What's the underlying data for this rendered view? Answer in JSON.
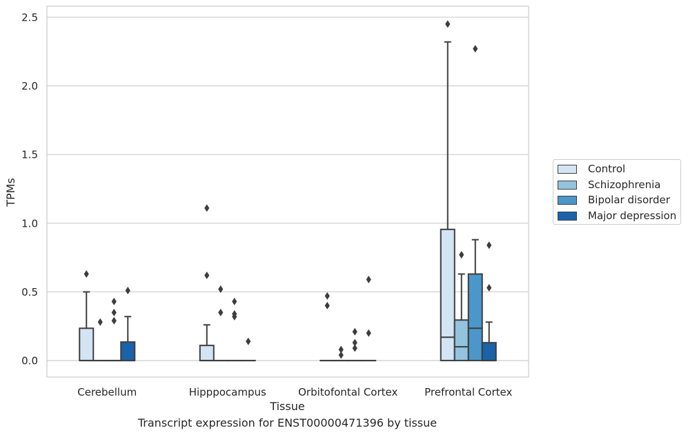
{
  "caption": "Transcript expression for ENST00000471396 by tissue",
  "colors": {
    "Control": "#d3e4f3",
    "Schizophrenia": "#93c3df",
    "Bipolar disorder": "#4b97c9",
    "Major depression": "#1a63aa"
  },
  "chart_data": {
    "type": "box",
    "xlabel": "Tissue",
    "ylabel": "TPMs",
    "ylim": [
      -0.12,
      2.58
    ],
    "yticks": [
      0.0,
      0.5,
      1.0,
      1.5,
      2.0,
      2.5
    ],
    "ytick_labels": [
      "0.0",
      "0.5",
      "1.0",
      "1.5",
      "2.0",
      "2.5"
    ],
    "grid": true,
    "legend_position": "right",
    "categories": [
      "Cerebellum",
      "Hipppocampus",
      "Orbitofontal Cortex",
      "Prefrontal Cortex"
    ],
    "series": [
      {
        "name": "Control",
        "boxes": [
          {
            "q1": 0.0,
            "median": 0.0,
            "q3": 0.235,
            "whislo": 0.0,
            "whishi": 0.5,
            "fliers": [
              0.63
            ]
          },
          {
            "q1": 0.0,
            "median": 0.0,
            "q3": 0.11,
            "whislo": 0.0,
            "whishi": 0.26,
            "fliers": [
              0.62,
              1.11
            ]
          },
          {
            "q1": 0.0,
            "median": 0.0,
            "q3": 0.0,
            "whislo": 0.0,
            "whishi": 0.0,
            "fliers": [
              0.4,
              0.47
            ]
          },
          {
            "q1": 0.0,
            "median": 0.17,
            "q3": 0.955,
            "whislo": 0.0,
            "whishi": 2.32,
            "fliers": [
              2.45
            ]
          }
        ]
      },
      {
        "name": "Schizophrenia",
        "boxes": [
          {
            "q1": 0.0,
            "median": 0.0,
            "q3": 0.0,
            "whislo": 0.0,
            "whishi": 0.0,
            "fliers": [
              0.28
            ]
          },
          {
            "q1": 0.0,
            "median": 0.0,
            "q3": 0.0,
            "whislo": 0.0,
            "whishi": 0.0,
            "fliers": [
              0.35,
              0.52
            ]
          },
          {
            "q1": 0.0,
            "median": 0.0,
            "q3": 0.0,
            "whislo": 0.0,
            "whishi": 0.0,
            "fliers": [
              0.04,
              0.08
            ]
          },
          {
            "q1": 0.0,
            "median": 0.1,
            "q3": 0.295,
            "whislo": 0.0,
            "whishi": 0.63,
            "fliers": [
              0.77
            ]
          }
        ]
      },
      {
        "name": "Bipolar disorder",
        "boxes": [
          {
            "q1": 0.0,
            "median": 0.0,
            "q3": 0.0,
            "whislo": 0.0,
            "whishi": 0.0,
            "fliers": [
              0.29,
              0.35,
              0.43
            ]
          },
          {
            "q1": 0.0,
            "median": 0.0,
            "q3": 0.0,
            "whislo": 0.0,
            "whishi": 0.0,
            "fliers": [
              0.32,
              0.34,
              0.43
            ]
          },
          {
            "q1": 0.0,
            "median": 0.0,
            "q3": 0.0,
            "whislo": 0.0,
            "whishi": 0.0,
            "fliers": [
              0.09,
              0.13,
              0.21
            ]
          },
          {
            "q1": 0.0,
            "median": 0.235,
            "q3": 0.63,
            "whislo": 0.0,
            "whishi": 0.88,
            "fliers": [
              2.27
            ]
          }
        ]
      },
      {
        "name": "Major depression",
        "boxes": [
          {
            "q1": 0.0,
            "median": 0.0,
            "q3": 0.135,
            "whislo": 0.0,
            "whishi": 0.32,
            "fliers": [
              0.51
            ]
          },
          {
            "q1": 0.0,
            "median": 0.0,
            "q3": 0.0,
            "whislo": 0.0,
            "whishi": 0.0,
            "fliers": [
              0.14
            ]
          },
          {
            "q1": 0.0,
            "median": 0.0,
            "q3": 0.0,
            "whislo": 0.0,
            "whishi": 0.0,
            "fliers": [
              0.2,
              0.59
            ]
          },
          {
            "q1": 0.0,
            "median": 0.0,
            "q3": 0.13,
            "whislo": 0.0,
            "whishi": 0.28,
            "fliers": [
              0.53,
              0.84
            ]
          }
        ]
      }
    ]
  }
}
